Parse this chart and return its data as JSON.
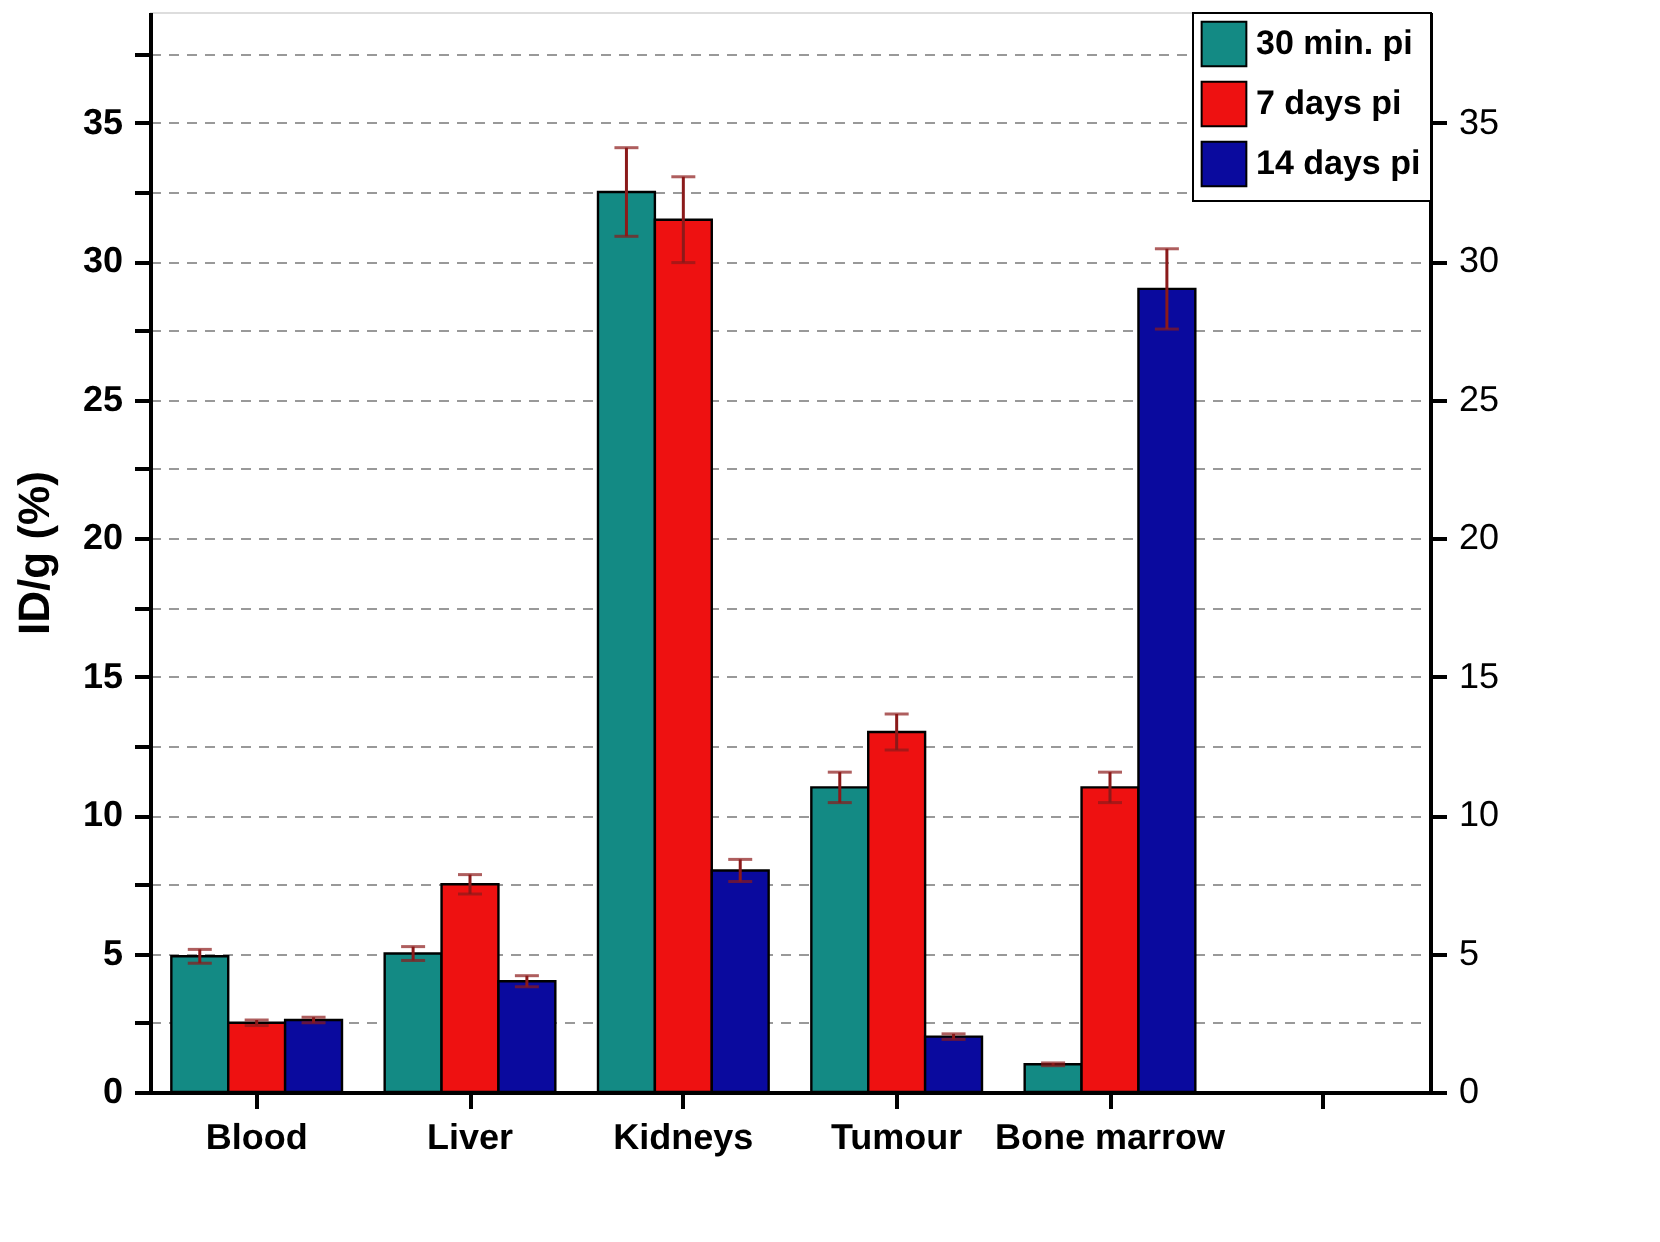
{
  "chart_data": {
    "type": "bar",
    "ylabel": "ID/g (%)",
    "categories": [
      "Blood",
      "Liver",
      "Kidneys",
      "Tumour",
      "Bone marrow",
      null
    ],
    "series": [
      {
        "name": "30 min. pi",
        "color": "#138a84",
        "values": [
          4.9,
          5.0,
          32.5,
          11.0,
          1.0,
          null
        ],
        "errors": [
          0.25,
          0.25,
          1.6,
          0.55,
          0.05,
          null
        ]
      },
      {
        "name": "7 days pi",
        "color": "#ee1111",
        "values": [
          2.5,
          7.5,
          31.5,
          13.0,
          11.0,
          null
        ],
        "errors": [
          0.1,
          0.35,
          1.55,
          0.65,
          0.55,
          null
        ]
      },
      {
        "name": "14 days pi",
        "color": "#0a0a9e",
        "values": [
          2.6,
          4.0,
          8.0,
          2.0,
          29.0,
          null
        ],
        "errors": [
          0.1,
          0.2,
          0.4,
          0.1,
          1.45,
          null
        ]
      }
    ],
    "ylim": [
      0,
      39
    ],
    "yticks": [
      0,
      {
        "value": 2.5,
        "label": null
      },
      5,
      {
        "value": 7.5,
        "label": null
      },
      10,
      {
        "value": 12.5,
        "label": null
      },
      15,
      {
        "value": 17.5,
        "label": null
      },
      20,
      {
        "value": 22.5,
        "label": null
      },
      25,
      {
        "value": 27.5,
        "label": null
      },
      30,
      {
        "value": 32.5,
        "label": null
      },
      35,
      {
        "value": 37.5,
        "label": null
      }
    ],
    "y2lim": [
      0,
      39
    ],
    "y2ticks": [
      0,
      5,
      10,
      15,
      20,
      25,
      30,
      35
    ],
    "grid": "y",
    "legend": "top right"
  }
}
